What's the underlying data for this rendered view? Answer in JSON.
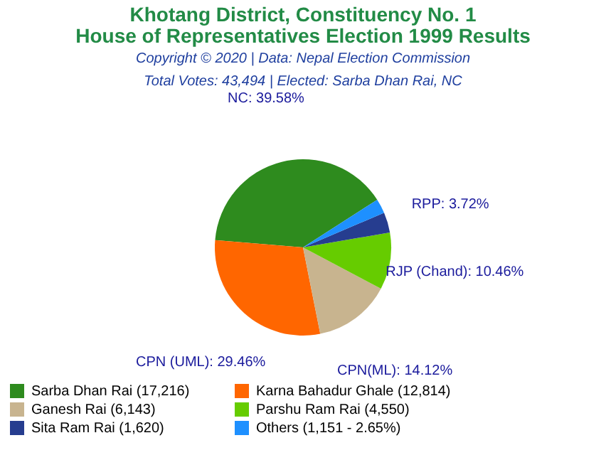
{
  "chart_data": {
    "type": "pie",
    "title": "Khotang District, Constituency No. 1\nHouse of Representatives Election 1999 Results",
    "subtitle": "Copyright © 2020 | Data: Nepal Election Commission",
    "annotations": [
      "Total Votes: 43,494 | Elected: Sarba Dhan Rai, NC"
    ],
    "categories": [
      "Sarba Dhan Rai (17,216)",
      "Karna Bahadur Ghale (12,814)",
      "Ganesh Rai (6,143)",
      "Parshu Ram Rai (4,550)",
      "Sita Ram Rai (1,620)",
      "Others (1,151 - 2.65%)"
    ],
    "values": [
      39.58,
      29.46,
      14.12,
      10.46,
      3.72,
      2.65
    ],
    "colors": [
      "#2e8b1e",
      "#ff6600",
      "#c8b48f",
      "#66cc00",
      "#263d8f",
      "#1e90ff"
    ],
    "value_labels": [
      "NC: 39.58%",
      "CPN (UML): 29.46%",
      "CPN(ML): 14.12%",
      "RJP (Chand): 10.46%",
      "RPP: 3.72%",
      null
    ],
    "legend": "bottom"
  }
}
